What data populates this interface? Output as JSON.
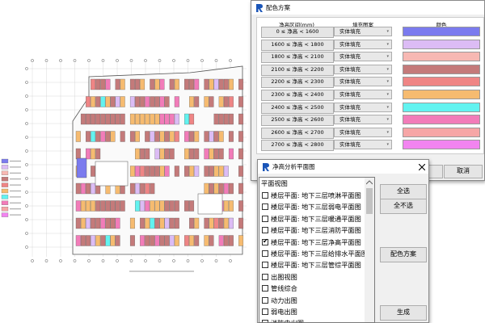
{
  "color_scheme_dialog": {
    "title": "配色方案",
    "headers": [
      "净高区间(mm)",
      "填充图案",
      "颜色"
    ],
    "rows": [
      {
        "range": "0 ≤ 净高 < 1600",
        "fill": "实体填充",
        "color": "#7b7bee"
      },
      {
        "range": "1600 ≤ 净高 < 1800",
        "fill": "实体填充",
        "color": "#dcbcf5"
      },
      {
        "range": "1800 ≤ 净高 < 2100",
        "fill": "实体填充",
        "color": "#f7b8b3"
      },
      {
        "range": "2100 ≤ 净高 < 2200",
        "fill": "实体填充",
        "color": "#c47a7a"
      },
      {
        "range": "2200 ≤ 净高 < 2300",
        "fill": "实体填充",
        "color": "#ef8585"
      },
      {
        "range": "2300 ≤ 净高 < 2400",
        "fill": "实体填充",
        "color": "#f6bb70"
      },
      {
        "range": "2400 ≤ 净高 < 2500",
        "fill": "实体填充",
        "color": "#62f3f0"
      },
      {
        "range": "2500 ≤ 净高 < 2600",
        "fill": "实体填充",
        "color": "#f27cb9"
      },
      {
        "range": "2600 ≤ 净高 < 2700",
        "fill": "实体填充",
        "color": "#f6a6a6"
      },
      {
        "range": "2700 ≤ 净高 < 2800",
        "fill": "实体填充",
        "color": "#f284f0"
      }
    ],
    "cancel_button": "取消"
  },
  "analysis_dialog": {
    "title": "净高分析平面图",
    "list_header": "平面视图",
    "list_items": [
      {
        "label": "楼层平面: 地下三层喷淋平面图",
        "checked": false
      },
      {
        "label": "楼层平面: 地下三层弱电平面图",
        "checked": false
      },
      {
        "label": "楼层平面: 地下三层暖通平面图",
        "checked": false
      },
      {
        "label": "楼层平面: 地下三层消防平面图",
        "checked": false
      },
      {
        "label": "楼层平面: 地下三层净高平面图",
        "checked": true
      },
      {
        "label": "楼层平面: 地下三层给排水平面图",
        "checked": false
      },
      {
        "label": "楼层平面: 地下三层管综平面图",
        "checked": false
      },
      {
        "label": "出图视图",
        "checked": false
      },
      {
        "label": "管线综合",
        "checked": false
      },
      {
        "label": "动力出图",
        "checked": false
      },
      {
        "label": "弱电出图",
        "checked": false
      },
      {
        "label": "消防电出图",
        "checked": false
      }
    ],
    "buttons": [
      "全选",
      "全不选",
      "配色方案",
      "生成"
    ]
  }
}
